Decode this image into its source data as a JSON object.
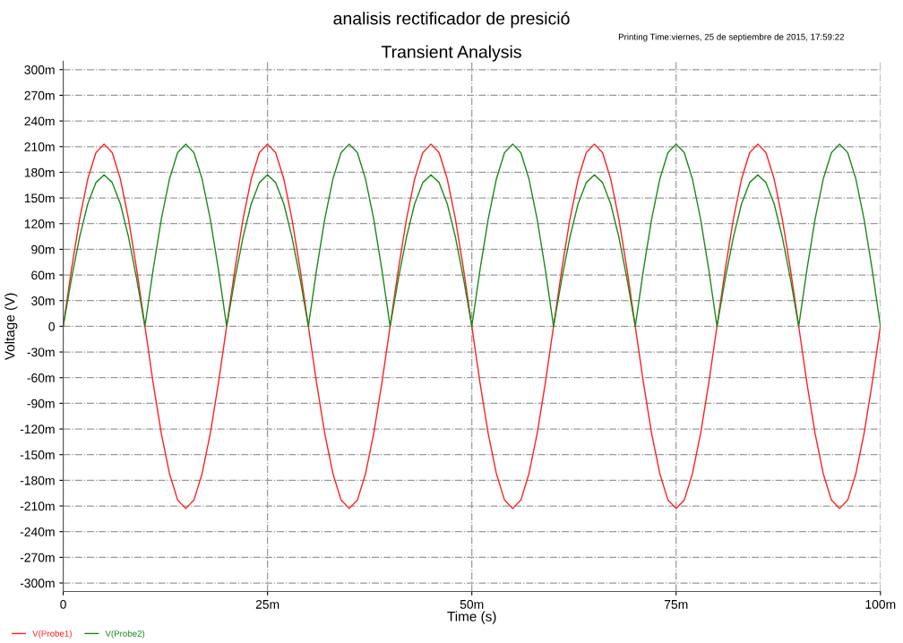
{
  "chart_data": {
    "type": "line",
    "title": "analisis rectificador de presició",
    "subtitle": "Transient Analysis",
    "xlabel": "Time (s)",
    "ylabel": "Voltage (V)",
    "annotations": [
      "Printing Time:viernes, 25 de septiembre de 2015, 17:59:22"
    ],
    "x": [
      0,
      1,
      2,
      3,
      4,
      5,
      6,
      7,
      8,
      9,
      10,
      11,
      12,
      13,
      14,
      15,
      16,
      17,
      18,
      19,
      20,
      21,
      22,
      23,
      24,
      25,
      26,
      27,
      28,
      29,
      30,
      31,
      32,
      33,
      34,
      35,
      36,
      37,
      38,
      39,
      40,
      41,
      42,
      43,
      44,
      45,
      46,
      47,
      48,
      49,
      50,
      51,
      52,
      53,
      54,
      55,
      56,
      57,
      58,
      59,
      60,
      61,
      62,
      63,
      64,
      65,
      66,
      67,
      68,
      69,
      70,
      71,
      72,
      73,
      74,
      75,
      76,
      77,
      78,
      79,
      80,
      81,
      82,
      83,
      84,
      85,
      86,
      87,
      88,
      89,
      90,
      91,
      92,
      93,
      94,
      95,
      96,
      97,
      98,
      99,
      100
    ],
    "series": [
      {
        "name": "V(Probe1)",
        "color": "#ff2020",
        "values": [
          0,
          66,
          125,
          172,
          203,
          213,
          203,
          172,
          125,
          66,
          0,
          -66,
          -125,
          -172,
          -203,
          -213,
          -203,
          -172,
          -125,
          -66,
          0,
          66,
          125,
          172,
          203,
          213,
          203,
          172,
          125,
          66,
          0,
          -66,
          -125,
          -172,
          -203,
          -213,
          -203,
          -172,
          -125,
          -66,
          0,
          66,
          125,
          172,
          203,
          213,
          203,
          172,
          125,
          66,
          0,
          -66,
          -125,
          -172,
          -203,
          -213,
          -203,
          -172,
          -125,
          -66,
          0,
          66,
          125,
          172,
          203,
          213,
          203,
          172,
          125,
          66,
          0,
          -66,
          -125,
          -172,
          -203,
          -213,
          -203,
          -172,
          -125,
          -66,
          0,
          66,
          125,
          172,
          203,
          213,
          203,
          172,
          125,
          66,
          0,
          -66,
          -125,
          -172,
          -203,
          -213,
          -203,
          -172,
          -125,
          -66,
          0
        ]
      },
      {
        "name": "V(Probe2)",
        "color": "#1a8a1a",
        "values": [
          0,
          55,
          104,
          143,
          168,
          177,
          168,
          143,
          104,
          55,
          0,
          66,
          125,
          172,
          203,
          213,
          203,
          172,
          125,
          66,
          0,
          55,
          104,
          143,
          168,
          177,
          168,
          143,
          104,
          55,
          0,
          66,
          125,
          172,
          203,
          213,
          203,
          172,
          125,
          66,
          0,
          55,
          104,
          143,
          168,
          177,
          168,
          143,
          104,
          55,
          0,
          66,
          125,
          172,
          203,
          213,
          203,
          172,
          125,
          66,
          0,
          55,
          104,
          143,
          168,
          177,
          168,
          143,
          104,
          55,
          0,
          66,
          125,
          172,
          203,
          213,
          203,
          172,
          125,
          66,
          0,
          55,
          104,
          143,
          168,
          177,
          168,
          143,
          104,
          55,
          0,
          66,
          125,
          172,
          203,
          213,
          203,
          172,
          125,
          66,
          0
        ]
      }
    ],
    "xlim": [
      0,
      100
    ],
    "xticks": [
      0,
      {
        "value": 25,
        "label": "25m"
      },
      {
        "value": 50,
        "label": "50m"
      },
      {
        "value": 75,
        "label": "75m"
      },
      {
        "value": 100,
        "label": "100m"
      }
    ],
    "ylim": [
      -310,
      310
    ],
    "yticks": [
      {
        "value": 300,
        "label": "300m"
      },
      {
        "value": 270,
        "label": "270m"
      },
      {
        "value": 240,
        "label": "240m"
      },
      {
        "value": 210,
        "label": "210m"
      },
      {
        "value": 180,
        "label": "180m"
      },
      {
        "value": 150,
        "label": "150m"
      },
      {
        "value": 120,
        "label": "120m"
      },
      {
        "value": 90,
        "label": "90m"
      },
      {
        "value": 60,
        "label": "60m"
      },
      {
        "value": 30,
        "label": "30m"
      },
      0,
      {
        "value": -30,
        "label": "-30m"
      },
      {
        "value": -60,
        "label": "-60m"
      },
      {
        "value": -90,
        "label": "-90m"
      },
      {
        "value": -120,
        "label": "-120m"
      },
      {
        "value": -150,
        "label": "-150m"
      },
      {
        "value": -180,
        "label": "-180m"
      },
      {
        "value": -210,
        "label": "-210m"
      },
      {
        "value": -240,
        "label": "-240m"
      },
      {
        "value": -270,
        "label": "-270m"
      },
      {
        "value": -300,
        "label": "-300m"
      }
    ],
    "grid": true,
    "legend": "bottom left",
    "marker": "none",
    "line_style": "solid"
  }
}
